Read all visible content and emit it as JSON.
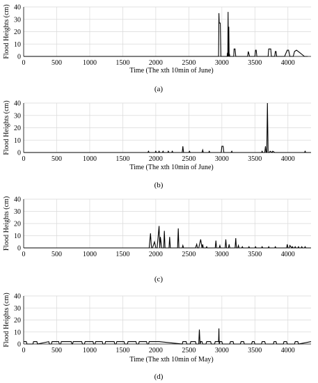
{
  "chart_data": [
    {
      "type": "line",
      "panel_label": "(a)",
      "xlabel": "Time (The xth 10min of June)",
      "ylabel": "Flood Heights (cm)",
      "xlim": [
        0,
        4350
      ],
      "ylim": [
        0,
        40
      ],
      "xticks": [
        0,
        500,
        1000,
        1500,
        2000,
        2500,
        3000,
        3500,
        4000
      ],
      "yticks": [
        0,
        10,
        20,
        30,
        40
      ],
      "grid": true,
      "series": [
        {
          "x": [
            0,
            2600,
            2950,
            2955,
            2960,
            2965,
            2975,
            2985,
            2990,
            3000,
            3080,
            3085,
            3090,
            3095,
            3100,
            3105,
            3110,
            3115,
            3120,
            3130,
            3180,
            3185,
            3200,
            3210,
            3300,
            3390,
            3400,
            3410,
            3420,
            3500,
            3510,
            3520,
            3530,
            3540,
            3700,
            3710,
            3740,
            3750,
            3800,
            3810,
            3820,
            3830,
            3950,
            3990,
            4010,
            4030,
            4080,
            4100,
            4130,
            4180,
            4250,
            4300
          ],
          "y": [
            0,
            0,
            0,
            35,
            27,
            27,
            27,
            0,
            0,
            0,
            0,
            3,
            0,
            36,
            0,
            24,
            0,
            2,
            0,
            0,
            0,
            6,
            6,
            0,
            0,
            0,
            4,
            2,
            0,
            0,
            5,
            5,
            0,
            0,
            0,
            6,
            6,
            0,
            0,
            4,
            4,
            0,
            0,
            5,
            5,
            0,
            0,
            4,
            5,
            3,
            0,
            0
          ]
        }
      ]
    },
    {
      "type": "line",
      "panel_label": "(b)",
      "xlabel": "Time (The xth 10min of June)",
      "ylabel": "Flood Heights (cm)",
      "xlim": [
        0,
        4350
      ],
      "ylim": [
        0,
        40
      ],
      "xticks": [
        0,
        500,
        1000,
        1500,
        2000,
        2500,
        3000,
        3500,
        4000
      ],
      "yticks": [
        0,
        10,
        20,
        30,
        40
      ],
      "grid": true,
      "series": [
        {
          "x": [
            0,
            1880,
            1890,
            1900,
            1990,
            2000,
            2010,
            2040,
            2050,
            2060,
            2100,
            2110,
            2120,
            2180,
            2190,
            2200,
            2240,
            2250,
            2260,
            2400,
            2410,
            2420,
            2500,
            2510,
            2520,
            2700,
            2710,
            2720,
            2800,
            2810,
            2820,
            2990,
            3000,
            3020,
            3030,
            3140,
            3150,
            3160,
            3600,
            3610,
            3620,
            3650,
            3660,
            3670,
            3680,
            3690,
            3700,
            3720,
            3730,
            3760,
            3770,
            3800,
            4250,
            4260,
            4270,
            4350
          ],
          "y": [
            0,
            0,
            1,
            0,
            0,
            1,
            0,
            0,
            1,
            0,
            0,
            1,
            0,
            0,
            1,
            0,
            0,
            1,
            0,
            0,
            5,
            0,
            0,
            1,
            0,
            0,
            2,
            0,
            0,
            1,
            0,
            0,
            5,
            5,
            0,
            0,
            1,
            0,
            0,
            1,
            0,
            0,
            5,
            0,
            0,
            40,
            0,
            0,
            1,
            0,
            1,
            0,
            0,
            1,
            0,
            0
          ]
        }
      ]
    },
    {
      "type": "line",
      "panel_label": "(c)",
      "xlabel": "",
      "ylabel": "Flood Heights (cm)",
      "xlim": [
        0,
        4350
      ],
      "ylim": [
        0,
        40
      ],
      "xticks": [
        0,
        500,
        1000,
        1500,
        2000,
        2500,
        3000,
        3500,
        4000
      ],
      "yticks": [
        0,
        10,
        20,
        30,
        40
      ],
      "grid": true,
      "series": [
        {
          "x": [
            0,
            1900,
            1920,
            1935,
            1950,
            1980,
            2000,
            2010,
            2020,
            2050,
            2060,
            2070,
            2090,
            2120,
            2130,
            2140,
            2160,
            2200,
            2210,
            2220,
            2240,
            2330,
            2340,
            2350,
            2370,
            2400,
            2410,
            2420,
            2600,
            2620,
            2630,
            2650,
            2680,
            2700,
            2710,
            2720,
            2760,
            2770,
            2780,
            2900,
            2910,
            2920,
            2960,
            2970,
            2980,
            3050,
            3060,
            3070,
            3100,
            3110,
            3120,
            3200,
            3210,
            3220,
            3240,
            3250,
            3260,
            3300,
            3310,
            3320,
            3400,
            3410,
            3420,
            3500,
            3510,
            3520,
            3600,
            3610,
            3620,
            3700,
            3710,
            3720,
            3800,
            3810,
            3820,
            3980,
            3990,
            4000,
            4020,
            4030,
            4060,
            4070,
            4080,
            4100,
            4110,
            4120,
            4150,
            4160,
            4170,
            4200,
            4210,
            4220,
            4250,
            4260,
            4270,
            4350
          ],
          "y": [
            0,
            0,
            12,
            0,
            0,
            5,
            0,
            0,
            0,
            18,
            0,
            9,
            0,
            0,
            14,
            0,
            0,
            0,
            9,
            0,
            0,
            0,
            16,
            0,
            0,
            0,
            2,
            0,
            0,
            3,
            0,
            0,
            7,
            0,
            3,
            0,
            0,
            1,
            0,
            0,
            6,
            0,
            0,
            2,
            0,
            0,
            7,
            0,
            0,
            3,
            0,
            0,
            8,
            0,
            0,
            2,
            0,
            0,
            1,
            0,
            0,
            1,
            0,
            0,
            1,
            0,
            0,
            1,
            0,
            0,
            1,
            0,
            0,
            1,
            0,
            0,
            3,
            0,
            0,
            2,
            0,
            1,
            0,
            0,
            1,
            0,
            0,
            1,
            0,
            0,
            1,
            0,
            0,
            1,
            0,
            0
          ]
        }
      ]
    },
    {
      "type": "line",
      "panel_label": "(d)",
      "xlabel": "Time (The xth 10min of May)",
      "ylabel": "Flood Heights (cm)",
      "xlim": [
        0,
        4350
      ],
      "ylim": [
        0,
        40
      ],
      "xticks": [
        0,
        500,
        1000,
        1500,
        2000,
        2500,
        3000,
        3500,
        4000
      ],
      "yticks": [
        0,
        10,
        20,
        30,
        40
      ],
      "grid": true,
      "series": [
        {
          "x": [
            0,
            40,
            50,
            140,
            150,
            200,
            210,
            380,
            390,
            420,
            430,
            530,
            540,
            560,
            570,
            720,
            730,
            740,
            750,
            880,
            890,
            920,
            930,
            1050,
            1060,
            1080,
            1090,
            1190,
            1200,
            1230,
            1240,
            1370,
            1380,
            1400,
            1410,
            1520,
            1530,
            1570,
            1580,
            1700,
            1710,
            1740,
            1750,
            1860,
            1870,
            1890,
            1900,
            2020,
            2050,
            2400,
            2410,
            2460,
            2470,
            2520,
            2530,
            2600,
            2610,
            2650,
            2660,
            2670,
            2680,
            2700,
            2710,
            2760,
            2770,
            2830,
            2840,
            2890,
            2900,
            2950,
            2955,
            2960,
            2970,
            3000,
            3010,
            3120,
            3130,
            3170,
            3180,
            3280,
            3290,
            3330,
            3340,
            3450,
            3460,
            3490,
            3500,
            3600,
            3610,
            3650,
            3660,
            3780,
            3790,
            3820,
            3830,
            3930,
            3940,
            3980,
            3990,
            4100,
            4110,
            4150,
            4160,
            4350
          ],
          "y": [
            2,
            2,
            0,
            0,
            2,
            2,
            0,
            2,
            0,
            0,
            2,
            2,
            0,
            0,
            2,
            2,
            0,
            0,
            2,
            2,
            0,
            0,
            2,
            2,
            0,
            0,
            2,
            2,
            0,
            0,
            2,
            2,
            0,
            0,
            2,
            2,
            0,
            0,
            2,
            2,
            0,
            0,
            2,
            2,
            0,
            0,
            2,
            2,
            2,
            0,
            2,
            2,
            0,
            0,
            2,
            2,
            0,
            0,
            12,
            0,
            2,
            2,
            0,
            0,
            2,
            2,
            0,
            0,
            2,
            2,
            13,
            0,
            2,
            2,
            0,
            0,
            2,
            2,
            0,
            0,
            2,
            2,
            0,
            0,
            2,
            2,
            0,
            0,
            2,
            2,
            0,
            0,
            2,
            2,
            0,
            0,
            2,
            2,
            0,
            0,
            2,
            2,
            0,
            2
          ]
        }
      ]
    }
  ]
}
